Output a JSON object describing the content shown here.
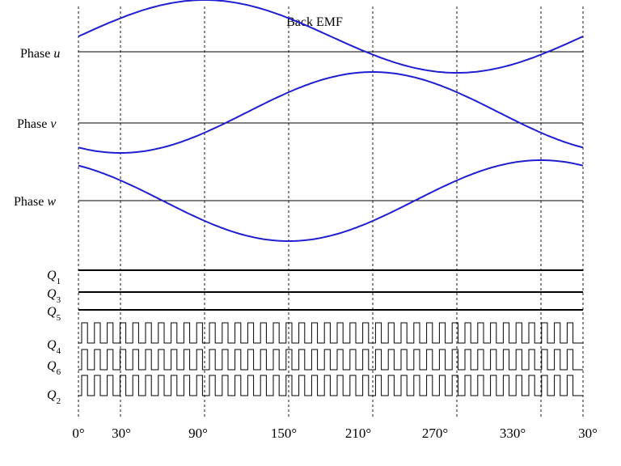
{
  "title": "Back EMF",
  "phases": [
    {
      "name": "Phase",
      "symbol": "u",
      "peak_deg": 90
    },
    {
      "name": "Phase",
      "symbol": "v",
      "peak_deg": 210
    },
    {
      "name": "Phase",
      "symbol": "w",
      "peak_deg": 330
    }
  ],
  "switches": [
    {
      "name": "Q",
      "sub": "1",
      "type": "constant"
    },
    {
      "name": "Q",
      "sub": "3",
      "type": "constant"
    },
    {
      "name": "Q",
      "sub": "5",
      "type": "constant"
    },
    {
      "name": "Q",
      "sub": "4",
      "type": "pwm"
    },
    {
      "name": "Q",
      "sub": "6",
      "type": "pwm"
    },
    {
      "name": "Q",
      "sub": "2",
      "type": "pwm"
    }
  ],
  "angle_ticks": [
    "0°",
    "30°",
    "90°",
    "150°",
    "210°",
    "270°",
    "330°",
    "30°"
  ],
  "colors": {
    "waveform": "#1f1fd0",
    "lines": "#000000"
  }
}
